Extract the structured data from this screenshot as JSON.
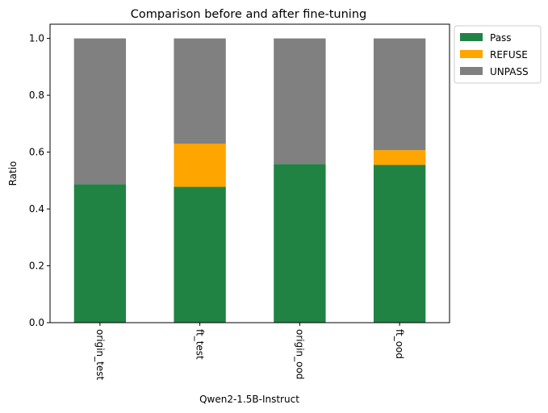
{
  "chart_data": {
    "type": "bar",
    "stacked": true,
    "title": "Comparison before and after fine-tuning",
    "xlabel": "Qwen2-1.5B-Instruct",
    "ylabel": "Ratio",
    "categories": [
      "origin_test",
      "ft_test",
      "origin_ood",
      "ft_ood"
    ],
    "series": [
      {
        "name": "Pass",
        "color": "#208343",
        "values": [
          0.487,
          0.478,
          0.558,
          0.555
        ]
      },
      {
        "name": "REFUSE",
        "color": "#FFA500",
        "values": [
          0.0,
          0.152,
          0.0,
          0.052
        ]
      },
      {
        "name": "UNPASS",
        "color": "#808080",
        "values": [
          0.513,
          0.37,
          0.442,
          0.393
        ]
      }
    ],
    "ylim": [
      0,
      1.05
    ],
    "yticks": [
      "0.0",
      "0.2",
      "0.4",
      "0.6",
      "0.8",
      "1.0"
    ],
    "ytick_values": [
      0,
      0.2,
      0.4,
      0.6,
      0.8,
      1.0
    ],
    "grid": false,
    "legend_position": "outside-top-right",
    "xtick_rotation": "vertical"
  }
}
